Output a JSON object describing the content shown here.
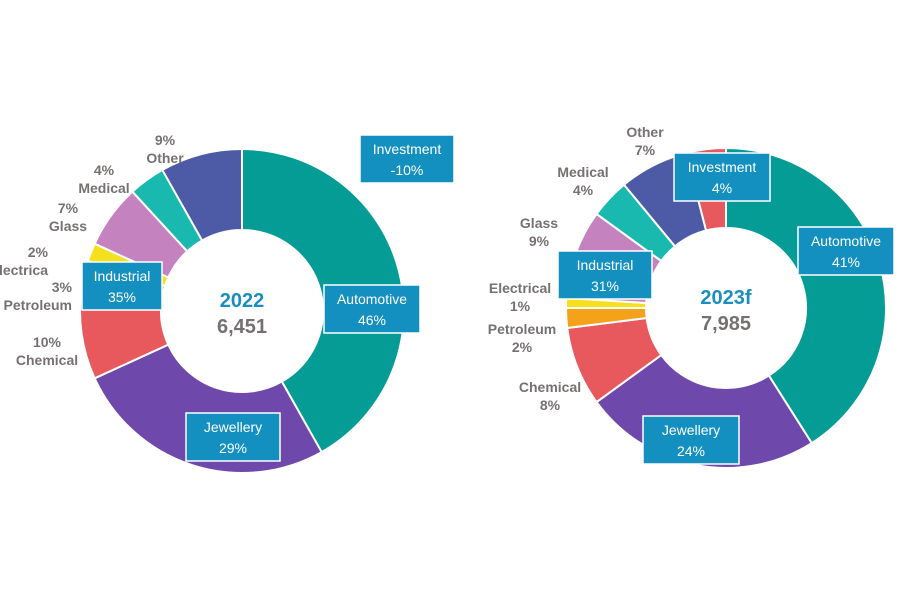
{
  "chart_data": [
    {
      "type": "pie",
      "variant": "donut",
      "center_title": "2022",
      "center_total": "6,451",
      "slices": [
        {
          "name": "Automotive",
          "value": 46,
          "color": "#069c96"
        },
        {
          "name": "Jewellery",
          "value": 29,
          "color": "#6e49ab"
        },
        {
          "name": "Chemical",
          "value": 10,
          "color": "#e8595d"
        },
        {
          "name": "Petroleum",
          "value": 3,
          "color": "#f5a21b"
        },
        {
          "name": "Electrical",
          "value": 2,
          "color": "#f6df1d"
        },
        {
          "name": "Glass",
          "value": 7,
          "color": "#c483be"
        },
        {
          "name": "Medical",
          "value": 4,
          "color": "#1ab9b0"
        },
        {
          "name": "Other",
          "value": 9,
          "color": "#4d5ba7"
        }
      ],
      "boxes": [
        {
          "name": "Investment",
          "value": "-10%"
        },
        {
          "name": "Automotive",
          "value": "46%"
        },
        {
          "name": "Jewellery",
          "value": "29%"
        },
        {
          "name": "Industrial",
          "value": "35%"
        }
      ],
      "side_labels": [
        {
          "lines": [
            "9%",
            "Other"
          ]
        },
        {
          "lines": [
            "4%",
            "Medical"
          ]
        },
        {
          "lines": [
            "7%",
            "Glass"
          ]
        },
        {
          "lines": [
            "2%",
            "Electrica"
          ]
        },
        {
          "lines": [
            "3%",
            "Petroleum"
          ]
        },
        {
          "lines": [
            "10%",
            "Chemical"
          ]
        }
      ]
    },
    {
      "type": "pie",
      "variant": "donut",
      "center_title": "2023f",
      "center_total": "7,985",
      "slices": [
        {
          "name": "Automotive",
          "value": 41,
          "color": "#069c96"
        },
        {
          "name": "Jewellery",
          "value": 24,
          "color": "#6e49ab"
        },
        {
          "name": "Chemical",
          "value": 8,
          "color": "#e8595d"
        },
        {
          "name": "Petroleum",
          "value": 2,
          "color": "#f5a21b"
        },
        {
          "name": "Electrical",
          "value": 1,
          "color": "#f6df1d"
        },
        {
          "name": "Glass",
          "value": 9,
          "color": "#c483be"
        },
        {
          "name": "Medical",
          "value": 4,
          "color": "#1ab9b0"
        },
        {
          "name": "Other",
          "value": 7,
          "color": "#4d5ba7"
        },
        {
          "name": "Investment",
          "value": 4,
          "color": "#e8595d"
        }
      ],
      "boxes": [
        {
          "name": "Investment",
          "value": "4%"
        },
        {
          "name": "Automotive",
          "value": "41%"
        },
        {
          "name": "Jewellery",
          "value": "24%"
        },
        {
          "name": "Industrial",
          "value": "31%"
        }
      ],
      "side_labels": [
        {
          "lines": [
            "Other",
            "7%"
          ]
        },
        {
          "lines": [
            "Medical",
            "4%"
          ]
        },
        {
          "lines": [
            "Glass",
            "9%"
          ]
        },
        {
          "lines": [
            "Electrical",
            "1%"
          ]
        },
        {
          "lines": [
            "Petroleum",
            "2%"
          ]
        },
        {
          "lines": [
            "Chemical",
            "8%"
          ]
        }
      ]
    }
  ],
  "colors": {
    "box_fill": "#138fc0",
    "box_border": "#ffffff",
    "center_title": "#1b8ec0",
    "label_text": "#767171"
  }
}
